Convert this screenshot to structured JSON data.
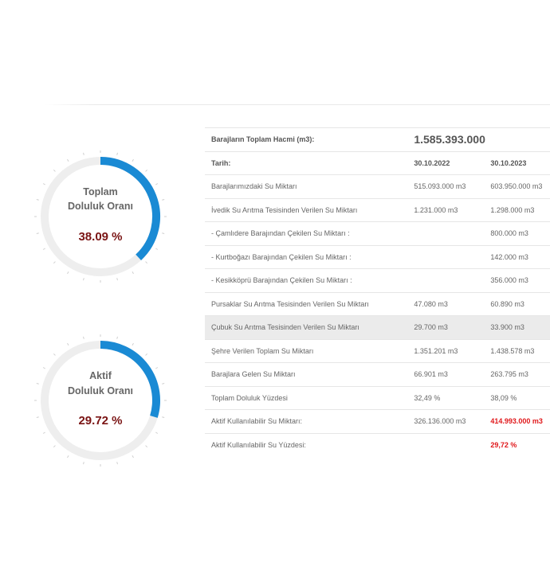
{
  "colors": {
    "arc": "#1a8ad4",
    "track": "#eeeeee",
    "value": "#7a1414",
    "highlight": "#e0181b"
  },
  "gauges": [
    {
      "title_line1": "Toplam",
      "title_line2": "Doluluk Oranı",
      "value_text": "38.09 %",
      "fraction": 0.3809
    },
    {
      "title_line1": "Aktif",
      "title_line2": "Doluluk Oranı",
      "value_text": "29.72 %",
      "fraction": 0.2972
    }
  ],
  "table": {
    "total_label": "Barajların Toplam Hacmi (m3):",
    "total_value": "1.585.393.000",
    "date_label": "Tarih:",
    "date1": "30.10.2022",
    "date2": "30.10.2023",
    "rows": [
      {
        "label": "Barajlarımızdaki Su Miktarı",
        "v1": "515.093.000 m3",
        "v2": "603.950.000 m3"
      },
      {
        "label": "İvedik Su Arıtma Tesisinden Verilen Su Miktarı",
        "v1": "1.231.000 m3",
        "v2": "1.298.000 m3"
      },
      {
        "label": "- Çamlıdere Barajından Çekilen Su Miktarı :",
        "v1": "",
        "v2": "800.000 m3"
      },
      {
        "label": "- Kurtboğazı Barajından Çekilen Su Miktarı :",
        "v1": "",
        "v2": "142.000 m3"
      },
      {
        "label": "- Kesikköprü Barajından Çekilen Su Miktarı :",
        "v1": "",
        "v2": "356.000 m3"
      },
      {
        "label": "Pursaklar Su Arıtma Tesisinden Verilen Su Miktarı",
        "v1": "47.080 m3",
        "v2": "60.890 m3"
      },
      {
        "label": "Çubuk Su Arıtma Tesisinden Verilen Su Miktarı",
        "v1": "29.700 m3",
        "v2": "33.900 m3"
      },
      {
        "label": "Şehre Verilen Toplam Su Miktarı",
        "v1": "1.351.201 m3",
        "v2": "1.438.578 m3"
      },
      {
        "label": "Barajlara Gelen Su Miktarı",
        "v1": "66.901 m3",
        "v2": "263.795 m3"
      },
      {
        "label": "Toplam Doluluk Yüzdesi",
        "v1": "32,49 %",
        "v2": "38,09 %"
      },
      {
        "label": "Aktif Kullanılabilir Su Miktarı:",
        "v1": "326.136.000 m3",
        "v2": "414.993.000 m3"
      },
      {
        "label": "Aktif Kullanılabilir Su Yüzdesi:",
        "v1": "",
        "v2": "29,72 %"
      }
    ]
  }
}
